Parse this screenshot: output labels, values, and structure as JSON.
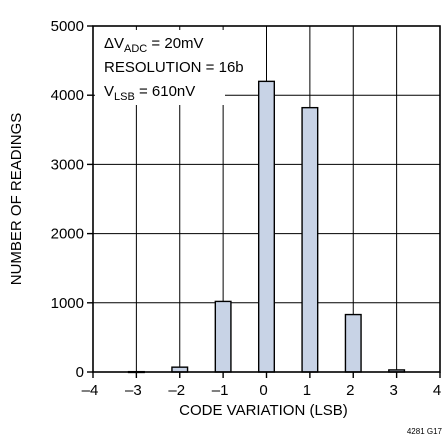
{
  "chart_data": {
    "type": "bar",
    "title": "",
    "xlabel": "CODE VARIATION (LSB)",
    "ylabel": "NUMBER OF READINGS",
    "xlim": [
      -4,
      4
    ],
    "ylim": [
      0,
      5000
    ],
    "x_ticks": [
      "–4",
      "–3",
      "–2",
      "–1",
      "0",
      "1",
      "2",
      "3",
      "4"
    ],
    "y_ticks": [
      "0",
      "1000",
      "2000",
      "3000",
      "4000",
      "5000"
    ],
    "grid": true,
    "bar_color": "#c8d3e6",
    "bar_edge_color": "#000000",
    "x": [
      -3,
      -2,
      -1,
      0,
      1,
      2,
      3
    ],
    "values": [
      5,
      70,
      1020,
      4200,
      3820,
      830,
      30
    ],
    "annotations": [
      {
        "main": "ΔV",
        "sub": "ADC",
        "rest": " = 20mV"
      },
      {
        "main": "RESOLUTION = 16b",
        "sub": "",
        "rest": ""
      },
      {
        "main": "V",
        "sub": "LSB",
        "rest": " = 610nV"
      }
    ],
    "figure_code": "4281 G17"
  }
}
